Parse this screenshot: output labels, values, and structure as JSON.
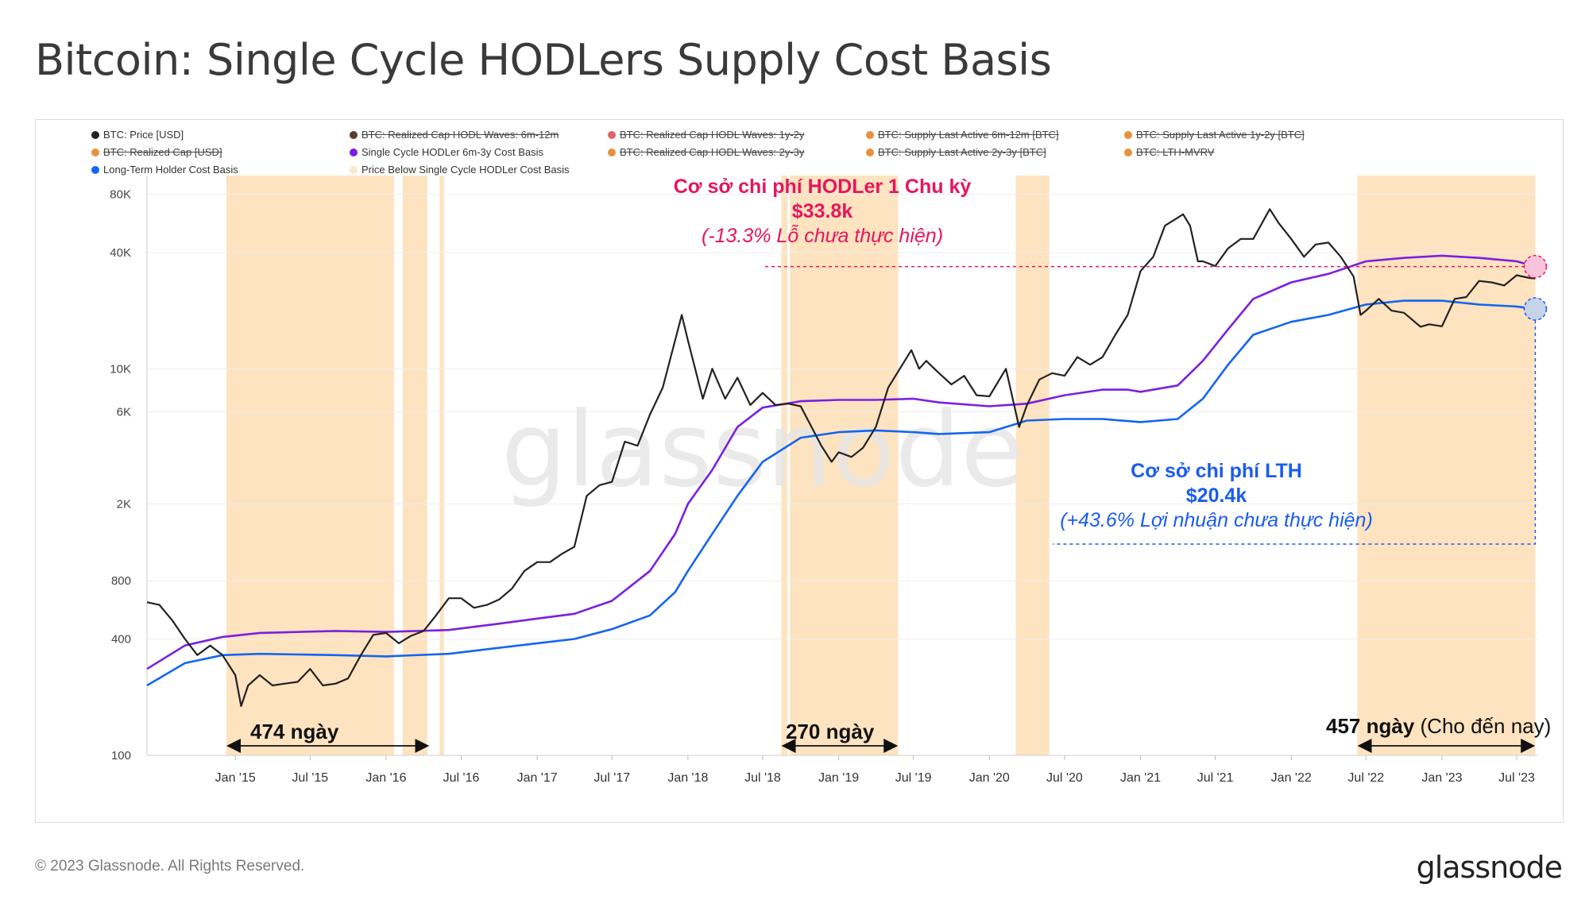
{
  "page": {
    "title": "Bitcoin: Single Cycle HODLers Supply Cost Basis",
    "copyright": "© 2023 Glassnode. All Rights Reserved.",
    "logo": "glassnode",
    "watermark": "glassnode"
  },
  "legend": [
    {
      "label": "BTC: Price [USD]",
      "color": "#222222",
      "active": true
    },
    {
      "label": "BTC: Realized Cap HODL Waves: 6m-12m",
      "color": "#5a3d2b",
      "active": false
    },
    {
      "label": "BTC: Realized Cap HODL Waves: 1y-2y",
      "color": "#e0636b",
      "active": false
    },
    {
      "label": "BTC: Supply Last Active 6m-12m [BTC]",
      "color": "#e8913a",
      "active": false
    },
    {
      "label": "BTC: Supply Last Active 1y-2y [BTC]",
      "color": "#e8913a",
      "active": false
    },
    {
      "label": "BTC: Realized Cap [USD]",
      "color": "#e8913a",
      "active": false
    },
    {
      "label": "Single Cycle HODLer 6m-3y Cost Basis",
      "color": "#7b1fe0",
      "active": true
    },
    {
      "label": "BTC: Realized Cap HODL Waves: 2y-3y",
      "color": "#e8913a",
      "active": false
    },
    {
      "label": "BTC: Supply Last Active 2y-3y [BTC]",
      "color": "#e8913a",
      "active": false
    },
    {
      "label": "BTC: LTH-MVRV",
      "color": "#e8913a",
      "active": false
    },
    {
      "label": "Long-Term Holder Cost Basis",
      "color": "#1565f0",
      "active": true
    },
    {
      "label": "Price Below Single Cycle HODLer Cost Basis",
      "color": "#fde7cc",
      "active": true
    }
  ],
  "annotations": {
    "hodler_title": "Cơ sở chi phí HODLer 1 Chu kỳ",
    "hodler_value": "$33.8k",
    "hodler_note": "(-13.3% Lỗ chưa thực hiện)",
    "lth_title": "Cơ sở chi phí LTH",
    "lth_value": "$20.4k",
    "lth_note": "(+43.6% Lợi nhuận chưa thực hiện)",
    "span1": "474 ngày",
    "span2": "270 ngày",
    "span3_bold": "457 ngày",
    "span3_rest": " (Cho đến nay)",
    "hodler_color": "#e8155b",
    "lth_color": "#1a5cf0"
  },
  "chart_data": {
    "type": "line",
    "yscale": "log",
    "ylim": [
      100,
      100000
    ],
    "yticks": [
      {
        "v": 100,
        "label": "100"
      },
      {
        "v": 400,
        "label": "400"
      },
      {
        "v": 800,
        "label": "800"
      },
      {
        "v": 2000,
        "label": "2K"
      },
      {
        "v": 6000,
        "label": "6K"
      },
      {
        "v": 10000,
        "label": "10K"
      },
      {
        "v": 40000,
        "label": "40K"
      },
      {
        "v": 80000,
        "label": "80K"
      }
    ],
    "xlim": [
      "2014-06-01",
      "2023-08-20"
    ],
    "xticks": [
      {
        "d": "2015-01-01",
        "label": "Jan '15"
      },
      {
        "d": "2015-07-01",
        "label": "Jul '15"
      },
      {
        "d": "2016-01-01",
        "label": "Jan '16"
      },
      {
        "d": "2016-07-01",
        "label": "Jul '16"
      },
      {
        "d": "2017-01-01",
        "label": "Jan '17"
      },
      {
        "d": "2017-07-01",
        "label": "Jul '17"
      },
      {
        "d": "2018-01-01",
        "label": "Jan '18"
      },
      {
        "d": "2018-07-01",
        "label": "Jul '18"
      },
      {
        "d": "2019-01-01",
        "label": "Jan '19"
      },
      {
        "d": "2019-07-01",
        "label": "Jul '19"
      },
      {
        "d": "2020-01-01",
        "label": "Jan '20"
      },
      {
        "d": "2020-07-01",
        "label": "Jul '20"
      },
      {
        "d": "2021-01-01",
        "label": "Jan '21"
      },
      {
        "d": "2021-07-01",
        "label": "Jul '21"
      },
      {
        "d": "2022-01-01",
        "label": "Jan '22"
      },
      {
        "d": "2022-07-01",
        "label": "Jul '22"
      },
      {
        "d": "2023-01-01",
        "label": "Jan '23"
      },
      {
        "d": "2023-07-01",
        "label": "Jul '23"
      }
    ],
    "series": [
      {
        "name": "BTC: Price [USD]",
        "color": "#222222",
        "points": [
          [
            "2014-06-01",
            620
          ],
          [
            "2014-07-01",
            600
          ],
          [
            "2014-08-01",
            500
          ],
          [
            "2014-09-01",
            400
          ],
          [
            "2014-10-01",
            330
          ],
          [
            "2014-11-01",
            370
          ],
          [
            "2014-12-01",
            330
          ],
          [
            "2015-01-01",
            260
          ],
          [
            "2015-01-15",
            180
          ],
          [
            "2015-02-01",
            230
          ],
          [
            "2015-03-01",
            260
          ],
          [
            "2015-04-01",
            230
          ],
          [
            "2015-05-01",
            235
          ],
          [
            "2015-06-01",
            240
          ],
          [
            "2015-07-01",
            280
          ],
          [
            "2015-08-01",
            230
          ],
          [
            "2015-09-01",
            235
          ],
          [
            "2015-10-01",
            250
          ],
          [
            "2015-11-01",
            330
          ],
          [
            "2015-12-01",
            420
          ],
          [
            "2016-01-01",
            430
          ],
          [
            "2016-02-01",
            380
          ],
          [
            "2016-03-01",
            415
          ],
          [
            "2016-04-01",
            440
          ],
          [
            "2016-05-01",
            530
          ],
          [
            "2016-06-01",
            650
          ],
          [
            "2016-07-01",
            650
          ],
          [
            "2016-08-01",
            580
          ],
          [
            "2016-09-01",
            600
          ],
          [
            "2016-10-01",
            640
          ],
          [
            "2016-11-01",
            730
          ],
          [
            "2016-12-01",
            900
          ],
          [
            "2017-01-01",
            1000
          ],
          [
            "2017-02-01",
            1000
          ],
          [
            "2017-03-01",
            1100
          ],
          [
            "2017-04-01",
            1200
          ],
          [
            "2017-05-01",
            2200
          ],
          [
            "2017-06-01",
            2500
          ],
          [
            "2017-07-01",
            2600
          ],
          [
            "2017-08-01",
            4200
          ],
          [
            "2017-09-01",
            4000
          ],
          [
            "2017-10-01",
            5800
          ],
          [
            "2017-11-01",
            8000
          ],
          [
            "2017-12-17",
            19000
          ],
          [
            "2018-01-01",
            14000
          ],
          [
            "2018-02-06",
            7000
          ],
          [
            "2018-03-01",
            10000
          ],
          [
            "2018-04-01",
            7000
          ],
          [
            "2018-05-01",
            9000
          ],
          [
            "2018-06-01",
            6500
          ],
          [
            "2018-07-01",
            7500
          ],
          [
            "2018-08-01",
            6500
          ],
          [
            "2018-09-01",
            6600
          ],
          [
            "2018-10-01",
            6400
          ],
          [
            "2018-11-20",
            4000
          ],
          [
            "2018-12-15",
            3300
          ],
          [
            "2019-01-01",
            3700
          ],
          [
            "2019-02-01",
            3500
          ],
          [
            "2019-03-01",
            3900
          ],
          [
            "2019-04-01",
            5000
          ],
          [
            "2019-05-01",
            8000
          ],
          [
            "2019-06-26",
            12500
          ],
          [
            "2019-07-15",
            10000
          ],
          [
            "2019-08-01",
            11000
          ],
          [
            "2019-09-01",
            9500
          ],
          [
            "2019-10-01",
            8300
          ],
          [
            "2019-11-01",
            9200
          ],
          [
            "2019-12-01",
            7300
          ],
          [
            "2020-01-01",
            7200
          ],
          [
            "2020-02-10",
            10000
          ],
          [
            "2020-03-13",
            5000
          ],
          [
            "2020-04-01",
            6500
          ],
          [
            "2020-05-01",
            8800
          ],
          [
            "2020-06-01",
            9500
          ],
          [
            "2020-07-01",
            9200
          ],
          [
            "2020-08-01",
            11500
          ],
          [
            "2020-09-01",
            10500
          ],
          [
            "2020-10-01",
            11500
          ],
          [
            "2020-11-01",
            15000
          ],
          [
            "2020-12-01",
            19000
          ],
          [
            "2021-01-01",
            32000
          ],
          [
            "2021-02-01",
            38000
          ],
          [
            "2021-03-01",
            55000
          ],
          [
            "2021-04-14",
            63000
          ],
          [
            "2021-05-01",
            55000
          ],
          [
            "2021-05-20",
            36000
          ],
          [
            "2021-06-01",
            36000
          ],
          [
            "2021-07-01",
            34000
          ],
          [
            "2021-08-01",
            42000
          ],
          [
            "2021-09-01",
            47000
          ],
          [
            "2021-10-01",
            47000
          ],
          [
            "2021-11-10",
            67000
          ],
          [
            "2021-12-01",
            57000
          ],
          [
            "2022-01-01",
            47000
          ],
          [
            "2022-02-01",
            38000
          ],
          [
            "2022-03-01",
            44000
          ],
          [
            "2022-04-01",
            45000
          ],
          [
            "2022-05-01",
            38000
          ],
          [
            "2022-06-01",
            30000
          ],
          [
            "2022-06-18",
            19000
          ],
          [
            "2022-07-01",
            20000
          ],
          [
            "2022-08-01",
            23000
          ],
          [
            "2022-09-01",
            20000
          ],
          [
            "2022-10-01",
            19500
          ],
          [
            "2022-11-10",
            16500
          ],
          [
            "2022-12-01",
            17000
          ],
          [
            "2023-01-01",
            16600
          ],
          [
            "2023-02-01",
            23000
          ],
          [
            "2023-03-01",
            23500
          ],
          [
            "2023-04-01",
            28500
          ],
          [
            "2023-05-01",
            28000
          ],
          [
            "2023-06-01",
            27000
          ],
          [
            "2023-07-01",
            30500
          ],
          [
            "2023-08-01",
            29500
          ],
          [
            "2023-08-15",
            29300
          ]
        ]
      },
      {
        "name": "Single Cycle HODLer 6m-3y Cost Basis",
        "color": "#7b1fe0",
        "points": [
          [
            "2014-06-01",
            280
          ],
          [
            "2014-09-01",
            370
          ],
          [
            "2014-12-01",
            410
          ],
          [
            "2015-03-01",
            430
          ],
          [
            "2015-09-01",
            440
          ],
          [
            "2016-01-01",
            435
          ],
          [
            "2016-06-01",
            445
          ],
          [
            "2016-10-01",
            480
          ],
          [
            "2017-01-01",
            510
          ],
          [
            "2017-04-01",
            540
          ],
          [
            "2017-07-01",
            630
          ],
          [
            "2017-10-01",
            900
          ],
          [
            "2017-12-01",
            1400
          ],
          [
            "2018-01-01",
            2000
          ],
          [
            "2018-03-01",
            3000
          ],
          [
            "2018-05-01",
            5000
          ],
          [
            "2018-07-01",
            6300
          ],
          [
            "2018-10-01",
            6800
          ],
          [
            "2019-01-01",
            6900
          ],
          [
            "2019-04-01",
            6900
          ],
          [
            "2019-07-01",
            7000
          ],
          [
            "2019-09-01",
            6700
          ],
          [
            "2020-01-01",
            6400
          ],
          [
            "2020-04-01",
            6600
          ],
          [
            "2020-07-01",
            7300
          ],
          [
            "2020-10-01",
            7800
          ],
          [
            "2020-12-01",
            7800
          ],
          [
            "2021-01-01",
            7600
          ],
          [
            "2021-04-01",
            8200
          ],
          [
            "2021-06-01",
            11000
          ],
          [
            "2021-08-01",
            16000
          ],
          [
            "2021-10-01",
            23000
          ],
          [
            "2022-01-01",
            28000
          ],
          [
            "2022-04-01",
            31000
          ],
          [
            "2022-07-01",
            36000
          ],
          [
            "2022-10-01",
            37500
          ],
          [
            "2023-01-01",
            38500
          ],
          [
            "2023-04-01",
            37500
          ],
          [
            "2023-07-01",
            36000
          ],
          [
            "2023-08-15",
            33800
          ]
        ]
      },
      {
        "name": "Long-Term Holder Cost Basis",
        "color": "#1565f0",
        "points": [
          [
            "2014-06-01",
            230
          ],
          [
            "2014-09-01",
            300
          ],
          [
            "2014-12-01",
            330
          ],
          [
            "2015-03-01",
            335
          ],
          [
            "2015-09-01",
            330
          ],
          [
            "2016-01-01",
            325
          ],
          [
            "2016-06-01",
            335
          ],
          [
            "2016-10-01",
            360
          ],
          [
            "2017-01-01",
            380
          ],
          [
            "2017-04-01",
            400
          ],
          [
            "2017-07-01",
            450
          ],
          [
            "2017-10-01",
            530
          ],
          [
            "2017-12-01",
            700
          ],
          [
            "2018-01-01",
            900
          ],
          [
            "2018-03-01",
            1400
          ],
          [
            "2018-05-01",
            2200
          ],
          [
            "2018-07-01",
            3300
          ],
          [
            "2018-10-01",
            4400
          ],
          [
            "2019-01-01",
            4700
          ],
          [
            "2019-04-01",
            4800
          ],
          [
            "2019-07-01",
            4700
          ],
          [
            "2019-09-01",
            4600
          ],
          [
            "2020-01-01",
            4700
          ],
          [
            "2020-04-01",
            5400
          ],
          [
            "2020-07-01",
            5500
          ],
          [
            "2020-10-01",
            5500
          ],
          [
            "2021-01-01",
            5300
          ],
          [
            "2021-04-01",
            5500
          ],
          [
            "2021-06-01",
            7000
          ],
          [
            "2021-08-01",
            10500
          ],
          [
            "2021-10-01",
            15000
          ],
          [
            "2022-01-01",
            17500
          ],
          [
            "2022-04-01",
            19000
          ],
          [
            "2022-07-01",
            21500
          ],
          [
            "2022-10-01",
            22500
          ],
          [
            "2023-01-01",
            22500
          ],
          [
            "2023-04-01",
            21500
          ],
          [
            "2023-07-01",
            21000
          ],
          [
            "2023-08-15",
            20400
          ]
        ]
      }
    ],
    "shaded_periods": [
      {
        "name": "Price Below Single Cycle HODLer Cost Basis",
        "ranges": [
          [
            "2014-12-10",
            "2016-01-20"
          ],
          [
            "2016-02-10",
            "2016-04-10"
          ],
          [
            "2016-05-10",
            "2016-05-20"
          ],
          [
            "2018-08-15",
            "2018-08-30"
          ],
          [
            "2018-09-05",
            "2019-05-25"
          ],
          [
            "2020-03-05",
            "2020-05-25"
          ],
          [
            "2022-06-10",
            "2023-08-15"
          ]
        ]
      }
    ],
    "hodler_reference_value": 33800,
    "lth_reference_value": 20400
  }
}
